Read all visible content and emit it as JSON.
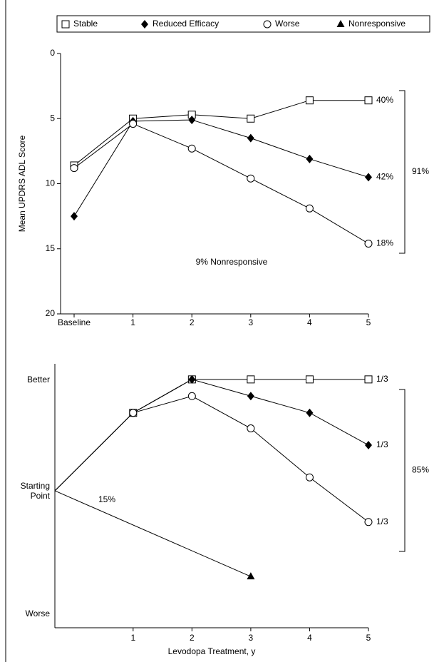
{
  "legend_position": "top",
  "chart_data": [
    {
      "type": "line",
      "ylabel": "Mean UPDRS ADL Score",
      "categories": [
        "Baseline",
        "1",
        "2",
        "3",
        "4",
        "5"
      ],
      "ylim": [
        20,
        0
      ],
      "yticks": [
        0,
        5,
        10,
        15,
        20
      ],
      "series": [
        {
          "marker": "square",
          "color": "#000000",
          "values": [
            8.6,
            5.0,
            4.7,
            5.0,
            3.6,
            3.6
          ],
          "end_label": "40%"
        },
        {
          "marker": "diamond",
          "color": "#000000",
          "values": [
            12.5,
            5.2,
            5.1,
            6.5,
            8.1,
            9.5
          ],
          "end_label": "42%"
        },
        {
          "marker": "circle",
          "color": "#000000",
          "values": [
            8.8,
            5.4,
            7.3,
            9.6,
            11.9,
            14.6
          ],
          "end_label": "18%"
        }
      ],
      "bracket_label": "91%",
      "annotation": "9% Nonresponsive"
    },
    {
      "type": "line",
      "xlabel": "Levodopa Treatment, y",
      "xlim": [
        -0.33,
        5
      ],
      "xticks": [
        1,
        2,
        3,
        4,
        5
      ],
      "ylim": [
        -1.23,
        1.14
      ],
      "yticks": [
        {
          "value": 1,
          "label": "Better"
        },
        {
          "value": 0,
          "label": "Starting Point"
        },
        {
          "value": -1.1,
          "label": "Worse"
        }
      ],
      "series": [
        {
          "name": "Stable",
          "marker": "square",
          "color": "#000000",
          "x": [
            -0.33,
            1,
            2,
            3,
            4,
            5
          ],
          "values": [
            0,
            0.7,
            1,
            1,
            1,
            1
          ],
          "end_label": "1/3"
        },
        {
          "name": "Reduced Efficacy",
          "marker": "diamond",
          "color": "#000000",
          "x": [
            -0.33,
            1,
            2,
            3,
            4,
            5
          ],
          "values": [
            0,
            0.7,
            1,
            0.85,
            0.7,
            0.41
          ],
          "end_label": "1/3"
        },
        {
          "name": "Worse",
          "marker": "circle",
          "color": "#000000",
          "x": [
            -0.33,
            1,
            2,
            3,
            4,
            5
          ],
          "values": [
            0,
            0.7,
            0.85,
            0.56,
            0.12,
            -0.28
          ],
          "end_label": "1/3"
        },
        {
          "name": "Nonresponsive",
          "marker": "triangle",
          "color": "#000000",
          "x": [
            -0.33,
            3
          ],
          "values": [
            0,
            -0.77
          ],
          "line_label": "15%"
        }
      ],
      "bracket_label": "85%"
    }
  ]
}
